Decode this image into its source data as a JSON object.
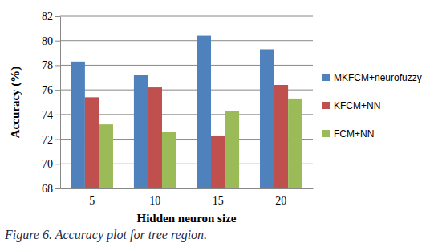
{
  "chart_data": {
    "type": "bar",
    "title": "Figure 6. Accuracy plot for tree region.",
    "x_label": "Hidden neuron size",
    "y_label": "Accuracy (%)",
    "categories": [
      "5",
      "10",
      "15",
      "20"
    ],
    "series": [
      {
        "name": "MKFCM+neurofuzzy",
        "color": "#4f81bd",
        "values": [
          78.3,
          77.2,
          80.4,
          79.3
        ]
      },
      {
        "name": "KFCM+NN",
        "color": "#c0504d",
        "values": [
          75.4,
          76.2,
          72.3,
          76.4
        ]
      },
      {
        "name": "FCM+NN",
        "color": "#9bbb59",
        "values": [
          73.2,
          72.6,
          74.3,
          75.3
        ]
      }
    ],
    "ylim": [
      68,
      82
    ],
    "yticks": [
      68,
      70,
      72,
      74,
      76,
      78,
      80,
      82
    ],
    "grid": true,
    "legend": "right"
  }
}
